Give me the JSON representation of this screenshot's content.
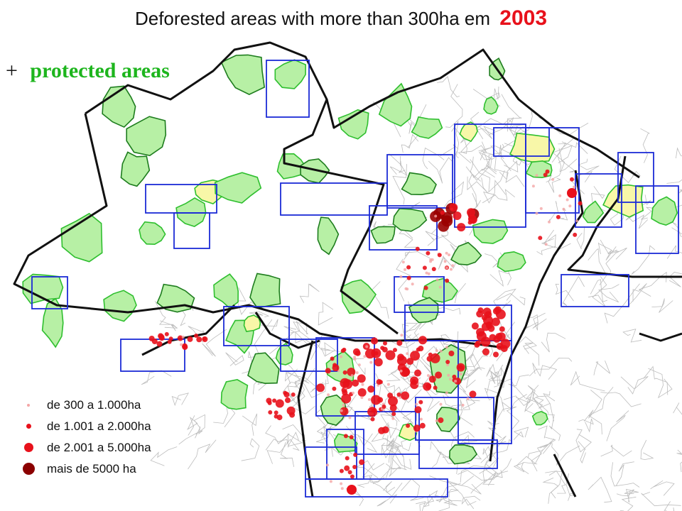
{
  "header": {
    "title_text": "Deforested areas with more than 300ha em",
    "title_year": "2003",
    "subtitle_prefix": "+",
    "subtitle_text": "protected areas"
  },
  "colors": {
    "protected_fill": "#b7f0a5",
    "protected_stroke": "#2fbf2f",
    "indigenous_fill": "#f8f7a8",
    "conservation_stroke": "#1e7d1e",
    "satellite_frame": "#1c2bd6",
    "border": "#111111",
    "municipal": "#bdbdbd",
    "year_red": "#e8111b"
  },
  "legend": [
    {
      "label": "de 300 a 1.000ha",
      "color": "#f4a6a6",
      "size": "small"
    },
    {
      "label": "de 1.001 a 2.000ha",
      "color": "#e8111b",
      "size": "medium"
    },
    {
      "label": "de 2.001 a 5.000ha",
      "color": "#e8111b",
      "size": "large"
    },
    {
      "label": "mais de 5000 ha",
      "color": "#8b0000",
      "size": "xlarge"
    }
  ]
}
